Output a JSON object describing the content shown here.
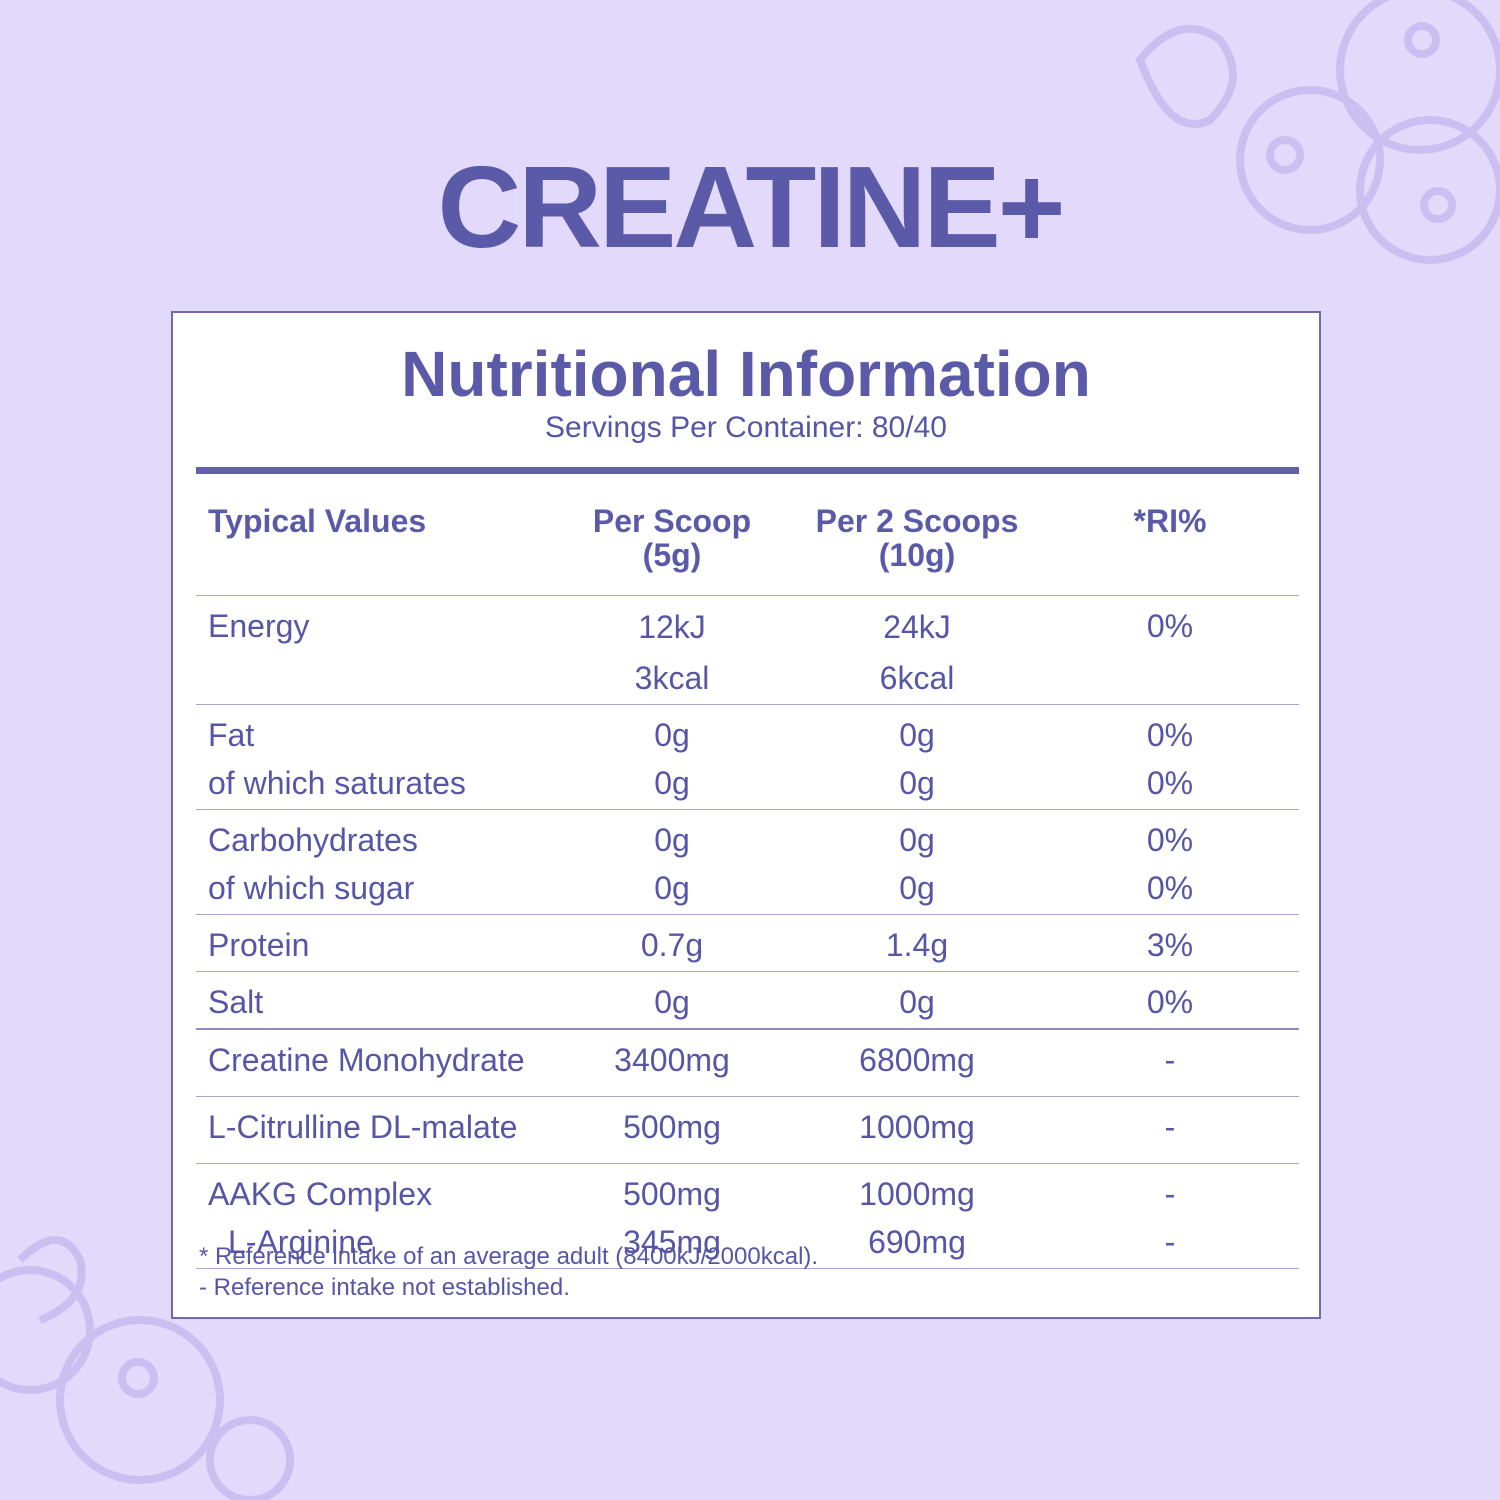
{
  "title": "CREATINE+",
  "panel": {
    "heading": "Nutritional Information",
    "servings": "Servings Per Container: 80/40"
  },
  "table": {
    "header": [
      [
        "Typical Values"
      ],
      [
        "Per Scoop",
        "(5g)"
      ],
      [
        "Per 2 Scoops",
        "(10g)"
      ],
      [
        "*RI%"
      ]
    ],
    "groups": [
      [
        {
          "cells": [
            [
              "Energy"
            ],
            [
              "12kJ",
              "3kcal"
            ],
            [
              "24kJ",
              "6kcal"
            ],
            [
              "0%"
            ]
          ]
        }
      ],
      [
        {
          "cells": [
            [
              "Fat"
            ],
            [
              "0g"
            ],
            [
              "0g"
            ],
            [
              "0%"
            ]
          ]
        },
        {
          "cells": [
            [
              "of which saturates"
            ],
            [
              "0g"
            ],
            [
              "0g"
            ],
            [
              "0%"
            ]
          ]
        }
      ],
      [
        {
          "cells": [
            [
              "Carbohydrates"
            ],
            [
              "0g"
            ],
            [
              "0g"
            ],
            [
              "0%"
            ]
          ]
        },
        {
          "cells": [
            [
              "of which sugar"
            ],
            [
              "0g"
            ],
            [
              "0g"
            ],
            [
              "0%"
            ]
          ]
        }
      ],
      [
        {
          "cells": [
            [
              "Protein"
            ],
            [
              "0.7g"
            ],
            [
              "1.4g"
            ],
            [
              "3%"
            ]
          ]
        }
      ],
      [
        {
          "cells": [
            [
              "Salt"
            ],
            [
              "0g"
            ],
            [
              "0g"
            ],
            [
              "0%"
            ]
          ]
        }
      ],
      [
        {
          "cells": [
            [
              "Creatine Monohydrate"
            ],
            [
              "3400mg"
            ],
            [
              "6800mg"
            ],
            [
              "-"
            ]
          ]
        }
      ],
      [
        {
          "cells": [
            [
              "L-Citrulline DL-malate"
            ],
            [
              "500mg"
            ],
            [
              "1000mg"
            ],
            [
              "-"
            ]
          ]
        }
      ],
      [
        {
          "cells": [
            [
              "AAKG Complex"
            ],
            [
              "500mg"
            ],
            [
              "1000mg"
            ],
            [
              "-"
            ]
          ]
        },
        {
          "cells": [
            [
              "L-Arginine"
            ],
            [
              "345mg"
            ],
            [
              "690mg"
            ],
            [
              "-"
            ]
          ],
          "indent": true
        }
      ]
    ]
  },
  "footnotes": [
    "* Reference intake of an average adult (8400kJ/2000kcal).",
    "- Reference intake not established."
  ]
}
